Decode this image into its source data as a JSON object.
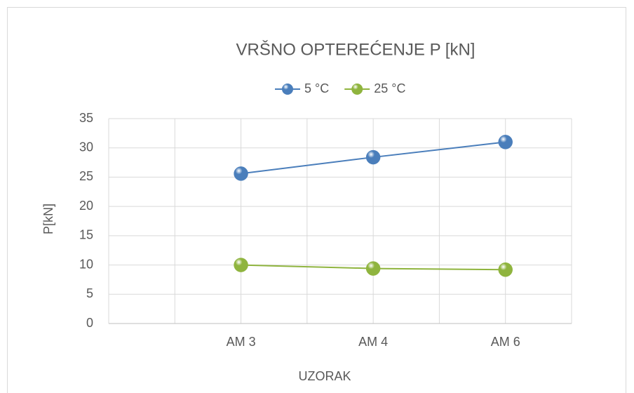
{
  "chart_data": {
    "type": "line",
    "title": "VRŠNO OPTEREĆENJE P [kN]",
    "x_label": "UZORAK",
    "y_label": "P[kN]",
    "categories": [
      "AM 3",
      "AM 4",
      "AM 6"
    ],
    "series": [
      {
        "name": "5 °C",
        "color": "#4a7ebb",
        "values": [
          25.6,
          28.4,
          31
        ]
      },
      {
        "name": "25 °C",
        "color": "#8fb43e",
        "values": [
          10,
          9.4,
          9.2
        ]
      }
    ],
    "ylim": [
      0,
      35
    ],
    "yticks": [
      0,
      5,
      10,
      15,
      20,
      25,
      30,
      35
    ],
    "grid": true,
    "legend": "top"
  }
}
